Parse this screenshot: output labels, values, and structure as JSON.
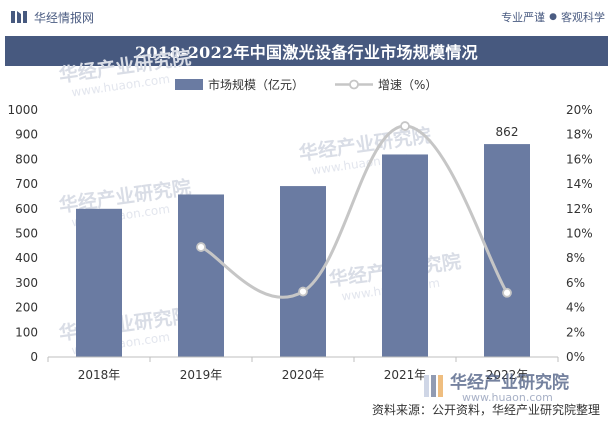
{
  "header": {
    "brand_name": "华经情报网",
    "slogan_left": "专业严谨",
    "slogan_right": "客观科学"
  },
  "colors": {
    "bar": "#6a7ba2",
    "line": "#c6c6c6",
    "title_bg": "#47597f"
  },
  "chart_data": {
    "type": "bar",
    "title": "2018-2022年中国激光设备行业市场规模情况",
    "categories": [
      "2018年",
      "2019年",
      "2020年",
      "2021年",
      "2022年"
    ],
    "series": [
      {
        "name": "市场规模（亿元）",
        "type": "bar",
        "axis": "left",
        "values": [
          600,
          658,
          692,
          820,
          862
        ]
      },
      {
        "name": "增速（%）",
        "type": "line",
        "axis": "right",
        "values": [
          null,
          8.9,
          5.3,
          18.7,
          5.2
        ]
      }
    ],
    "data_labels": [
      {
        "series": 0,
        "index": 4,
        "text": "862"
      }
    ],
    "y_left": {
      "min": 0,
      "max": 1000,
      "step": 100
    },
    "y_right": {
      "min": 0,
      "max": 20,
      "step": 2,
      "suffix": "%"
    },
    "legend_position": "top"
  },
  "watermark": {
    "text": "华经产业研究院",
    "url": "www.huaon.com"
  },
  "footer": {
    "source": "资料来源：公开资料，华经产业研究院整理",
    "stamp_name": "华经产业研究院",
    "stamp_url": "www.huaon.com"
  }
}
